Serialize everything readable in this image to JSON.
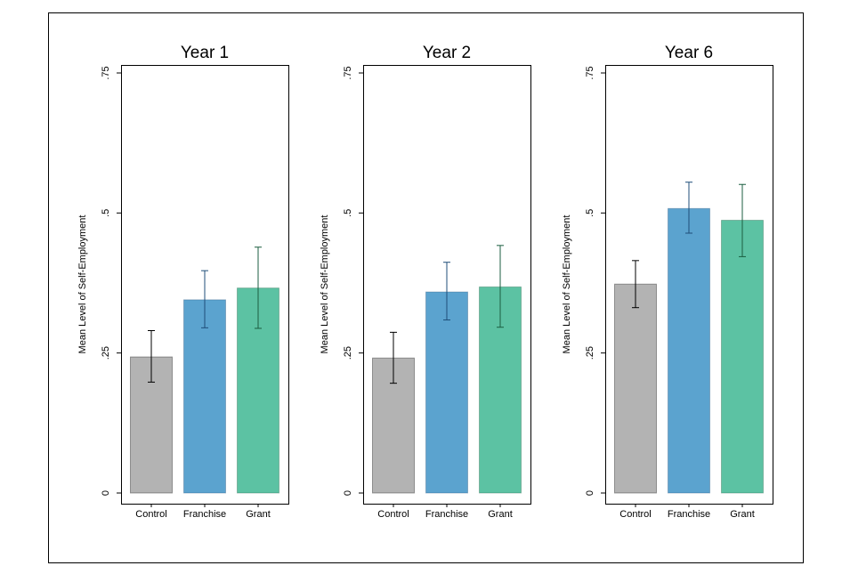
{
  "chart_data": {
    "type": "bar",
    "ylabel": "Mean Level of Self-Employment",
    "ylim": [
      0,
      0.75
    ],
    "yticks": [
      0,
      0.25,
      0.5,
      0.75
    ],
    "ytick_labels": [
      "0",
      ".25",
      ".5",
      ".75"
    ],
    "categories": [
      "Control",
      "Franchise",
      "Grant"
    ],
    "colors": [
      "#b3b3b3",
      "#5ba3cf",
      "#5cc2a3"
    ],
    "error_colors": [
      "#000000",
      "#1f4e79",
      "#1b5e40"
    ],
    "grid": false,
    "legend": "none",
    "panels": [
      {
        "title": "Year 1",
        "values": [
          0.243,
          0.345,
          0.366
        ],
        "ci_low": [
          0.198,
          0.295,
          0.294
        ],
        "ci_high": [
          0.29,
          0.397,
          0.439
        ]
      },
      {
        "title": "Year 2",
        "values": [
          0.241,
          0.359,
          0.368
        ],
        "ci_low": [
          0.196,
          0.309,
          0.296
        ],
        "ci_high": [
          0.287,
          0.412,
          0.442
        ]
      },
      {
        "title": "Year 6",
        "values": [
          0.373,
          0.508,
          0.487
        ],
        "ci_low": [
          0.331,
          0.464,
          0.422
        ],
        "ci_high": [
          0.415,
          0.555,
          0.551
        ]
      }
    ]
  }
}
